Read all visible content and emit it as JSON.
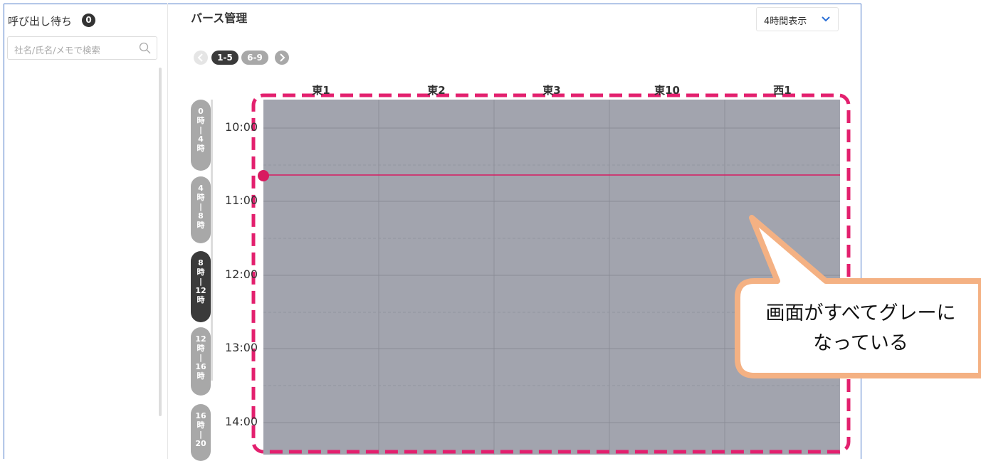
{
  "sidebar": {
    "title": "呼び出し待ち",
    "badge": "0",
    "search_placeholder": "社名/氏名/メモで検索"
  },
  "header": {
    "title": "バース管理",
    "view_select": "4時間表示"
  },
  "pager": {
    "pages": [
      "1-5",
      "6-9"
    ]
  },
  "berths": [
    "東1",
    "東2",
    "東3",
    "東10",
    "西1"
  ],
  "time_tabs": [
    [
      "0",
      "時",
      "|",
      "4",
      "時"
    ],
    [
      "4",
      "時",
      "|",
      "8",
      "時"
    ],
    [
      "8",
      "時",
      "|",
      "12",
      "時"
    ],
    [
      "12",
      "時",
      "|",
      "16",
      "時"
    ],
    [
      "16",
      "時",
      "|",
      "20"
    ]
  ],
  "times": [
    "10:00",
    "11:00",
    "12:00",
    "13:00",
    "14:00"
  ],
  "callout": {
    "lines": [
      "画面がすべてグレーに",
      "なっている"
    ]
  }
}
